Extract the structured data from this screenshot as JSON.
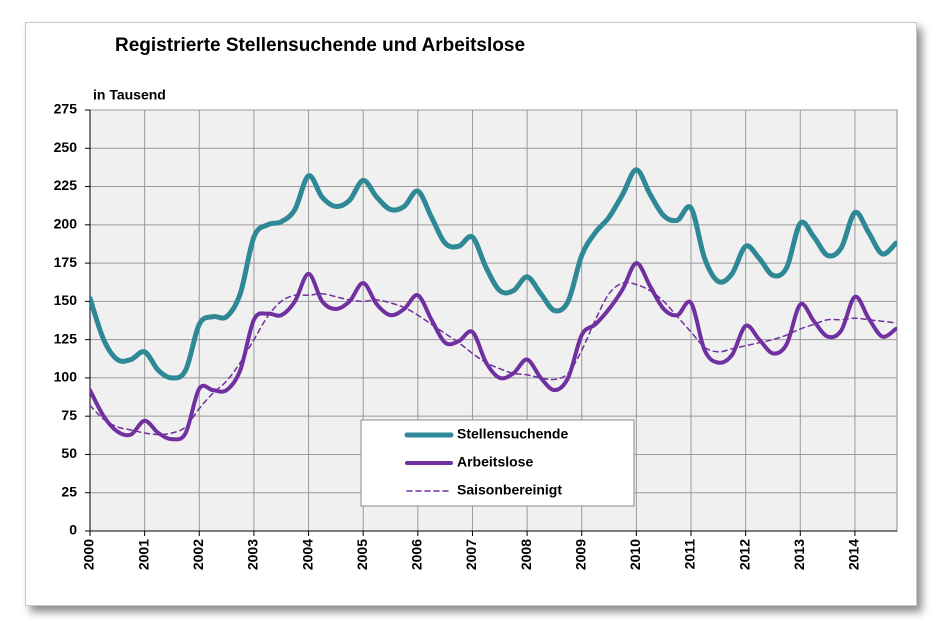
{
  "chart_data": {
    "type": "line",
    "title": "Registrierte Stellensuchende und Arbeitslose",
    "y_label": "in Tausend",
    "x": [
      2000,
      2000.25,
      2000.5,
      2000.75,
      2001,
      2001.25,
      2001.5,
      2001.75,
      2002,
      2002.25,
      2002.5,
      2002.75,
      2003,
      2003.25,
      2003.5,
      2003.75,
      2004,
      2004.25,
      2004.5,
      2004.75,
      2005,
      2005.25,
      2005.5,
      2005.75,
      2006,
      2006.25,
      2006.5,
      2006.75,
      2007,
      2007.25,
      2007.5,
      2007.75,
      2008,
      2008.25,
      2008.5,
      2008.75,
      2009,
      2009.25,
      2009.5,
      2009.75,
      2010,
      2010.25,
      2010.5,
      2010.75,
      2011,
      2011.25,
      2011.5,
      2011.75,
      2012,
      2012.25,
      2012.5,
      2012.75,
      2013,
      2013.25,
      2013.5,
      2013.75,
      2014,
      2014.25,
      2014.5,
      2014.75
    ],
    "series": [
      {
        "name": "Stellensuchende",
        "color": "#2e8896",
        "width": 5,
        "dash": false,
        "values": [
          152,
          125,
          112,
          112,
          117,
          105,
          100,
          105,
          135,
          140,
          140,
          155,
          192,
          200,
          202,
          210,
          232,
          218,
          212,
          216,
          229,
          218,
          210,
          212,
          222,
          205,
          188,
          186,
          192,
          172,
          157,
          157,
          166,
          155,
          144,
          150,
          180,
          195,
          205,
          220,
          236,
          220,
          206,
          203,
          211,
          178,
          163,
          168,
          186,
          178,
          167,
          172,
          201,
          192,
          180,
          185,
          208,
          195,
          181,
          188
        ]
      },
      {
        "name": "Arbeitslose",
        "color": "#7030a0",
        "width": 4,
        "dash": false,
        "values": [
          92,
          75,
          65,
          63,
          72,
          64,
          60,
          64,
          93,
          92,
          92,
          105,
          138,
          142,
          141,
          150,
          168,
          150,
          145,
          150,
          162,
          148,
          141,
          145,
          154,
          138,
          123,
          124,
          130,
          110,
          100,
          103,
          112,
          100,
          92,
          100,
          128,
          135,
          145,
          158,
          175,
          160,
          145,
          141,
          149,
          118,
          110,
          115,
          134,
          125,
          116,
          122,
          148,
          137,
          127,
          131,
          153,
          139,
          127,
          132
        ]
      },
      {
        "name": "Saisonbereinigt",
        "color": "#7030a0",
        "width": 1.5,
        "dash": true,
        "values": [
          82,
          73,
          68,
          66,
          64,
          63,
          64,
          68,
          80,
          90,
          98,
          110,
          125,
          140,
          150,
          154,
          154,
          155,
          153,
          151,
          150,
          151,
          149,
          146,
          141,
          135,
          129,
          123,
          116,
          110,
          106,
          103,
          102,
          100,
          99,
          103,
          118,
          138,
          155,
          162,
          161,
          157,
          150,
          140,
          130,
          120,
          117,
          119,
          121,
          123,
          125,
          128,
          132,
          135,
          138,
          138,
          139,
          138,
          137,
          136
        ]
      }
    ],
    "xlim": [
      2000,
      2014.77
    ],
    "xticks": [
      2000,
      2001,
      2002,
      2003,
      2004,
      2005,
      2006,
      2007,
      2008,
      2009,
      2010,
      2011,
      2012,
      2013,
      2014
    ],
    "ylim": [
      0,
      275
    ],
    "yticks": [
      0,
      25,
      50,
      75,
      100,
      125,
      150,
      175,
      200,
      225,
      250,
      275
    ],
    "grid": true,
    "legend": "lower center"
  }
}
